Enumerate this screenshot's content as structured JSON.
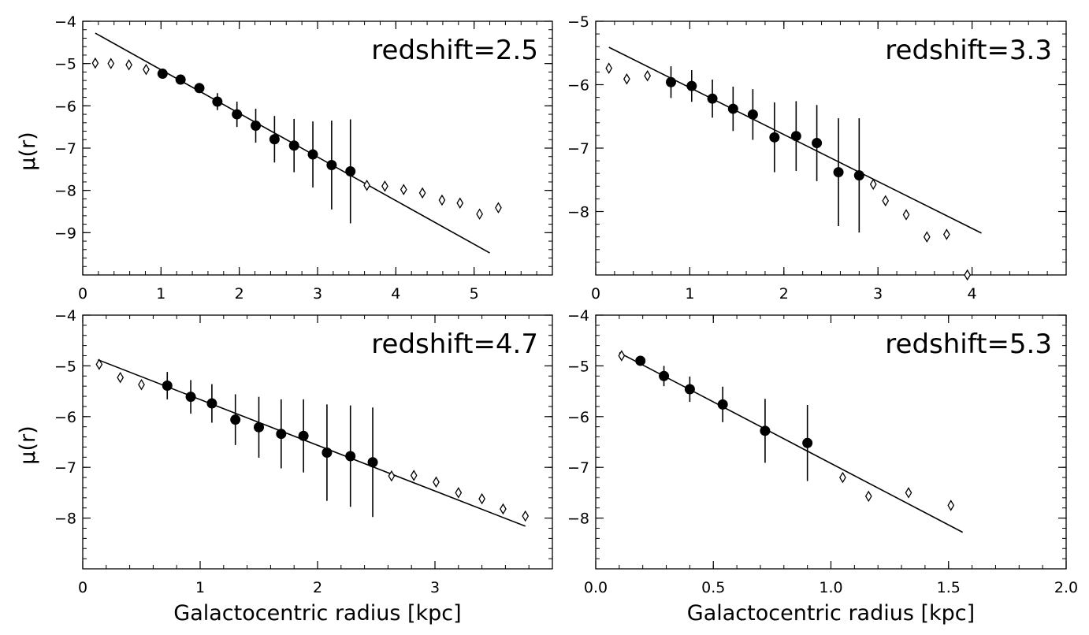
{
  "figure": {
    "ylabel": "μ(r)",
    "xlabel": "Galactocentric radius [kpc]"
  },
  "chart_data": [
    {
      "type": "scatter",
      "title": "redshift=2.5",
      "xlabel": "",
      "ylabel": "μ(r)",
      "xlim": [
        0,
        6
      ],
      "ylim": [
        -4,
        -10
      ],
      "xticks": [
        0,
        1,
        2,
        3,
        4,
        5
      ],
      "xticklabels": [
        "0",
        "1",
        "2",
        "3",
        "4",
        "5"
      ],
      "yticks": [
        -4,
        -5,
        -6,
        -7,
        -8,
        -9
      ],
      "yticklabels": [
        "−4",
        "−5",
        "−6",
        "−7",
        "−8",
        "−9"
      ],
      "fit_line": {
        "x": [
          0.16,
          5.2
        ],
        "y": [
          -4.28,
          -9.48
        ]
      },
      "filled_points": [
        {
          "x": 1.02,
          "y": -5.24,
          "err": 0.0
        },
        {
          "x": 1.25,
          "y": -5.38,
          "err": 0.0
        },
        {
          "x": 1.49,
          "y": -5.58,
          "err": 0.08
        },
        {
          "x": 1.72,
          "y": -5.9,
          "err": 0.2
        },
        {
          "x": 1.97,
          "y": -6.2,
          "err": 0.3
        },
        {
          "x": 2.21,
          "y": -6.47,
          "err": 0.4
        },
        {
          "x": 2.45,
          "y": -6.79,
          "err": 0.55
        },
        {
          "x": 2.7,
          "y": -6.94,
          "err": 0.63
        },
        {
          "x": 2.94,
          "y": -7.15,
          "err": 0.78
        },
        {
          "x": 3.18,
          "y": -7.4,
          "err": 1.05
        },
        {
          "x": 3.42,
          "y": -7.55,
          "err": 1.23
        }
      ],
      "open_points": [
        {
          "x": 0.16,
          "y": -4.99
        },
        {
          "x": 0.36,
          "y": -5.0
        },
        {
          "x": 0.59,
          "y": -5.03
        },
        {
          "x": 0.81,
          "y": -5.14
        },
        {
          "x": 3.63,
          "y": -7.88
        },
        {
          "x": 3.86,
          "y": -7.9
        },
        {
          "x": 4.1,
          "y": -7.98
        },
        {
          "x": 4.34,
          "y": -8.06
        },
        {
          "x": 4.59,
          "y": -8.23
        },
        {
          "x": 4.82,
          "y": -8.3
        },
        {
          "x": 5.07,
          "y": -8.56
        },
        {
          "x": 5.31,
          "y": -8.41
        }
      ]
    },
    {
      "type": "scatter",
      "title": "redshift=3.3",
      "xlabel": "",
      "ylabel": "",
      "xlim": [
        0,
        5
      ],
      "ylim": [
        -5,
        -9
      ],
      "xticks": [
        0,
        1,
        2,
        3,
        4
      ],
      "xticklabels": [
        "0",
        "1",
        "2",
        "3",
        "4"
      ],
      "yticks": [
        -5,
        -6,
        -7,
        -8
      ],
      "yticklabels": [
        "−5",
        "−6",
        "−7",
        "−8"
      ],
      "fit_line": {
        "x": [
          0.14,
          4.1
        ],
        "y": [
          -5.41,
          -8.34
        ]
      },
      "filled_points": [
        {
          "x": 0.8,
          "y": -5.96,
          "err": 0.25
        },
        {
          "x": 1.02,
          "y": -6.02,
          "err": 0.25
        },
        {
          "x": 1.24,
          "y": -6.22,
          "err": 0.3
        },
        {
          "x": 1.46,
          "y": -6.38,
          "err": 0.35
        },
        {
          "x": 1.67,
          "y": -6.47,
          "err": 0.4
        },
        {
          "x": 1.9,
          "y": -6.83,
          "err": 0.55
        },
        {
          "x": 2.13,
          "y": -6.81,
          "err": 0.55
        },
        {
          "x": 2.35,
          "y": -6.92,
          "err": 0.6
        },
        {
          "x": 2.58,
          "y": -7.38,
          "err": 0.85
        },
        {
          "x": 2.8,
          "y": -7.43,
          "err": 0.9
        }
      ],
      "open_points": [
        {
          "x": 0.14,
          "y": -5.74
        },
        {
          "x": 0.33,
          "y": -5.91
        },
        {
          "x": 0.55,
          "y": -5.86
        },
        {
          "x": 2.95,
          "y": -7.57
        },
        {
          "x": 3.08,
          "y": -7.83
        },
        {
          "x": 3.3,
          "y": -8.05
        },
        {
          "x": 3.52,
          "y": -8.4
        },
        {
          "x": 3.73,
          "y": -8.36
        },
        {
          "x": 3.95,
          "y": -9.0
        }
      ]
    },
    {
      "type": "scatter",
      "title": "redshift=4.7",
      "xlabel": "Galactocentric radius [kpc]",
      "ylabel": "μ(r)",
      "xlim": [
        0,
        4
      ],
      "ylim": [
        -4,
        -9
      ],
      "xticks": [
        0,
        1,
        2,
        3
      ],
      "xticklabels": [
        "0",
        "1",
        "2",
        "3"
      ],
      "yticks": [
        -4,
        -5,
        -6,
        -7,
        -8
      ],
      "yticklabels": [
        "−4",
        "−5",
        "−6",
        "−7",
        "−8"
      ],
      "fit_line": {
        "x": [
          0.13,
          3.77
        ],
        "y": [
          -4.88,
          -8.16
        ]
      },
      "filled_points": [
        {
          "x": 0.72,
          "y": -5.39,
          "err": 0.27
        },
        {
          "x": 0.92,
          "y": -5.61,
          "err": 0.33
        },
        {
          "x": 1.1,
          "y": -5.74,
          "err": 0.38
        },
        {
          "x": 1.3,
          "y": -6.06,
          "err": 0.5
        },
        {
          "x": 1.5,
          "y": -6.21,
          "err": 0.6
        },
        {
          "x": 1.69,
          "y": -6.34,
          "err": 0.68
        },
        {
          "x": 1.88,
          "y": -6.38,
          "err": 0.72
        },
        {
          "x": 2.08,
          "y": -6.71,
          "err": 0.95
        },
        {
          "x": 2.28,
          "y": -6.78,
          "err": 1.0
        },
        {
          "x": 2.47,
          "y": -6.9,
          "err": 1.08
        }
      ],
      "open_points": [
        {
          "x": 0.14,
          "y": -4.97
        },
        {
          "x": 0.32,
          "y": -5.23
        },
        {
          "x": 0.5,
          "y": -5.37
        },
        {
          "x": 2.63,
          "y": -7.17
        },
        {
          "x": 2.82,
          "y": -7.16
        },
        {
          "x": 3.01,
          "y": -7.29
        },
        {
          "x": 3.2,
          "y": -7.5
        },
        {
          "x": 3.4,
          "y": -7.62
        },
        {
          "x": 3.58,
          "y": -7.82
        },
        {
          "x": 3.77,
          "y": -7.96
        }
      ]
    },
    {
      "type": "scatter",
      "title": "redshift=5.3",
      "xlabel": "Galactocentric radius [kpc]",
      "ylabel": "",
      "xlim": [
        0.0,
        2.0
      ],
      "ylim": [
        -4,
        -9
      ],
      "xticks": [
        0.0,
        0.5,
        1.0,
        1.5,
        2.0
      ],
      "xticklabels": [
        "0.0",
        "0.5",
        "1.0",
        "1.5",
        "2.0"
      ],
      "yticks": [
        -4,
        -5,
        -6,
        -7,
        -8
      ],
      "yticklabels": [
        "−4",
        "−5",
        "−6",
        "−7",
        "−8"
      ],
      "fit_line": {
        "x": [
          0.1,
          1.56
        ],
        "y": [
          -4.74,
          -8.28
        ]
      },
      "filled_points": [
        {
          "x": 0.19,
          "y": -4.9,
          "err": 0.0
        },
        {
          "x": 0.29,
          "y": -5.2,
          "err": 0.2
        },
        {
          "x": 0.4,
          "y": -5.46,
          "err": 0.25
        },
        {
          "x": 0.54,
          "y": -5.76,
          "err": 0.35
        },
        {
          "x": 0.72,
          "y": -6.28,
          "err": 0.63
        },
        {
          "x": 0.9,
          "y": -6.52,
          "err": 0.75
        }
      ],
      "open_points": [
        {
          "x": 0.11,
          "y": -4.8
        },
        {
          "x": 1.05,
          "y": -7.2
        },
        {
          "x": 1.16,
          "y": -7.57
        },
        {
          "x": 1.33,
          "y": -7.5
        },
        {
          "x": 1.51,
          "y": -7.75
        }
      ]
    }
  ]
}
